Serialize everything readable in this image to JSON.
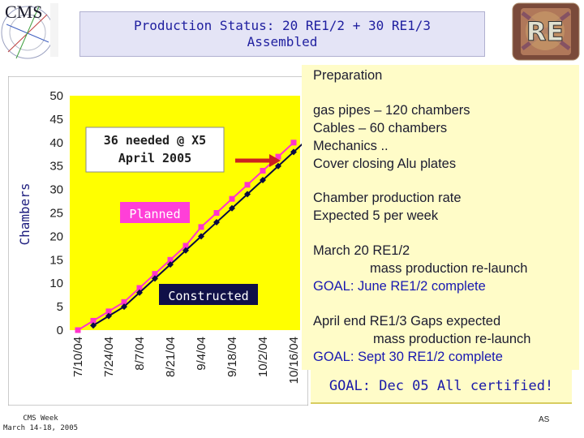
{
  "header": {
    "logo_text": "CMS",
    "title_line1": "Production Status: 20 RE1/2 + 30 RE1/3",
    "title_line2": "Assembled",
    "badge_text": "RE"
  },
  "chart_data": {
    "type": "line",
    "ylabel": "Chambers",
    "xlabel": "",
    "ylim": [
      0,
      50
    ],
    "yticks": [
      0,
      5,
      10,
      15,
      20,
      25,
      30,
      35,
      40,
      45,
      50
    ],
    "x_tick_labels": [
      "7/10/04",
      "7/24/04",
      "8/7/04",
      "8/21/04",
      "9/4/04",
      "9/18/04",
      "10/2/04",
      "10/16/04"
    ],
    "grid": false,
    "series": [
      {
        "key": "planned",
        "color": "#ff33cc",
        "marker": "square",
        "x": [
          "7/10/04",
          "7/17/04",
          "7/24/04",
          "7/31/04",
          "8/7/04",
          "8/14/04",
          "8/21/04",
          "8/28/04",
          "9/4/04",
          "9/11/04",
          "9/18/04",
          "9/25/04",
          "10/2/04",
          "10/9/04",
          "10/16/04"
        ],
        "values": [
          0,
          2,
          4,
          6,
          9,
          12,
          15,
          18,
          22,
          25,
          28,
          31,
          34,
          37,
          40
        ]
      },
      {
        "key": "constructed",
        "color": "#0a0a40",
        "marker": "diamond",
        "x": [
          "7/17/04",
          "7/24/04",
          "7/31/04",
          "8/7/04",
          "8/14/04",
          "8/21/04",
          "8/28/04",
          "9/4/04",
          "9/11/04",
          "9/18/04",
          "9/25/04",
          "10/2/04",
          "10/9/04",
          "10/16/04",
          "10/23/04"
        ],
        "values": [
          1,
          3,
          5,
          8,
          11,
          14,
          17,
          20,
          23,
          26,
          29,
          32,
          35,
          38,
          41
        ]
      }
    ],
    "annotations": {
      "needed_line1": "36 needed @ X5",
      "needed_line2": "April 2005",
      "planned_label": "Planned",
      "constructed_label": "Constructed"
    }
  },
  "panel": {
    "preparation": "Preparation",
    "lines_prep": [
      "gas pipes – 120 chambers",
      "Cables – 60 chambers",
      "Mechanics ..",
      "Cover closing Alu plates"
    ],
    "rate_line1": "Chamber production rate",
    "rate_line2": "Expected 5 per week",
    "re12_line1": "March 20 RE1/2",
    "re12_line2": "mass production re-launch",
    "re12_goal": "GOAL:  June RE1/2 complete",
    "re13_line1": "April end RE1/3 Gaps expected",
    "re13_line2": "mass production re-launch",
    "re13_goal": "GOAL:  Sept 30 RE1/2 complete"
  },
  "goal_bar": "GOAL:  Dec 05 All certified!",
  "footer": {
    "left_line1": "CMS Week",
    "left_line2": "March 14-18, 2005",
    "right": "AS"
  }
}
